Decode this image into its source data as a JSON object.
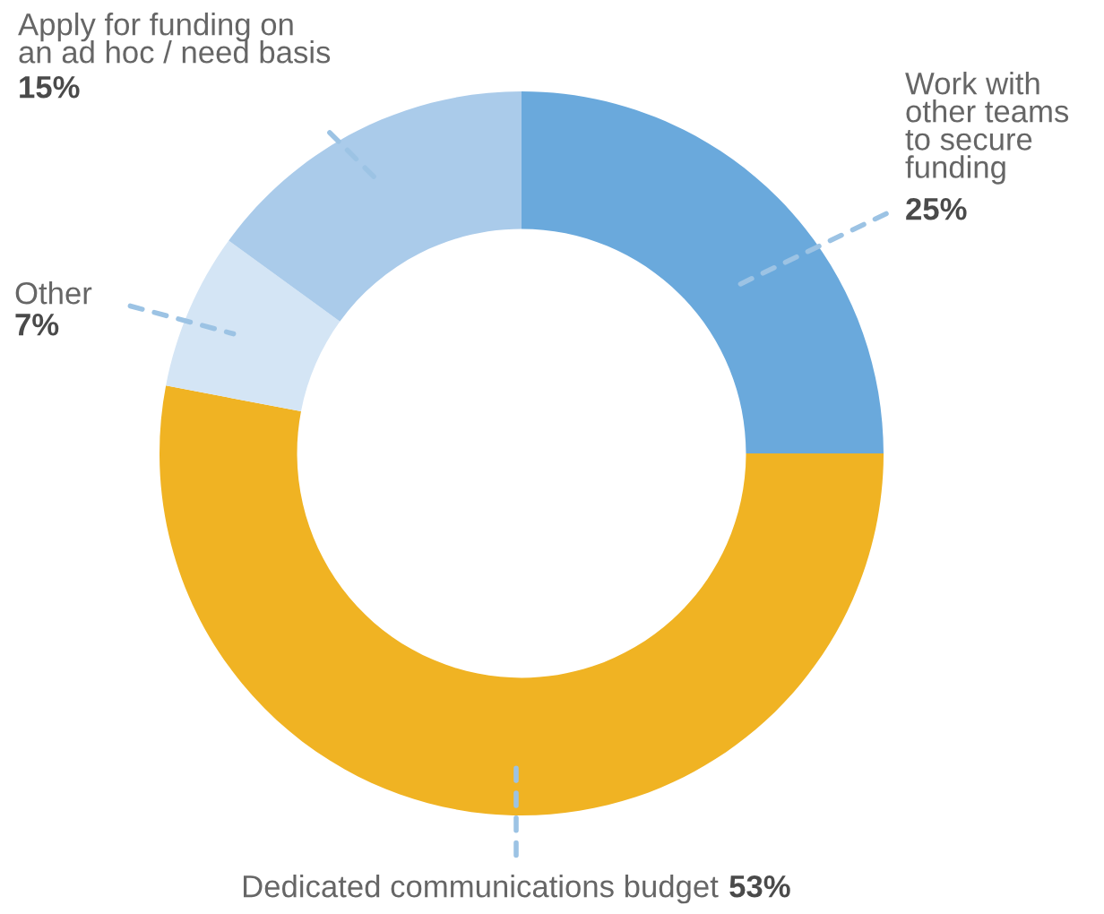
{
  "chart_data": {
    "type": "donut",
    "categories": [
      "Work with\nother teams\nto secure\nfunding",
      "Dedicated communications budget",
      "Other",
      "Apply for funding on\nan ad hoc / need basis"
    ],
    "values": [
      25,
      53,
      7,
      15
    ],
    "colors": [
      "#6aa9dc",
      "#f0b323",
      "#d4e5f5",
      "#aacbea"
    ],
    "value_labels": [
      "25%",
      "53%",
      "7%",
      "15%"
    ]
  }
}
